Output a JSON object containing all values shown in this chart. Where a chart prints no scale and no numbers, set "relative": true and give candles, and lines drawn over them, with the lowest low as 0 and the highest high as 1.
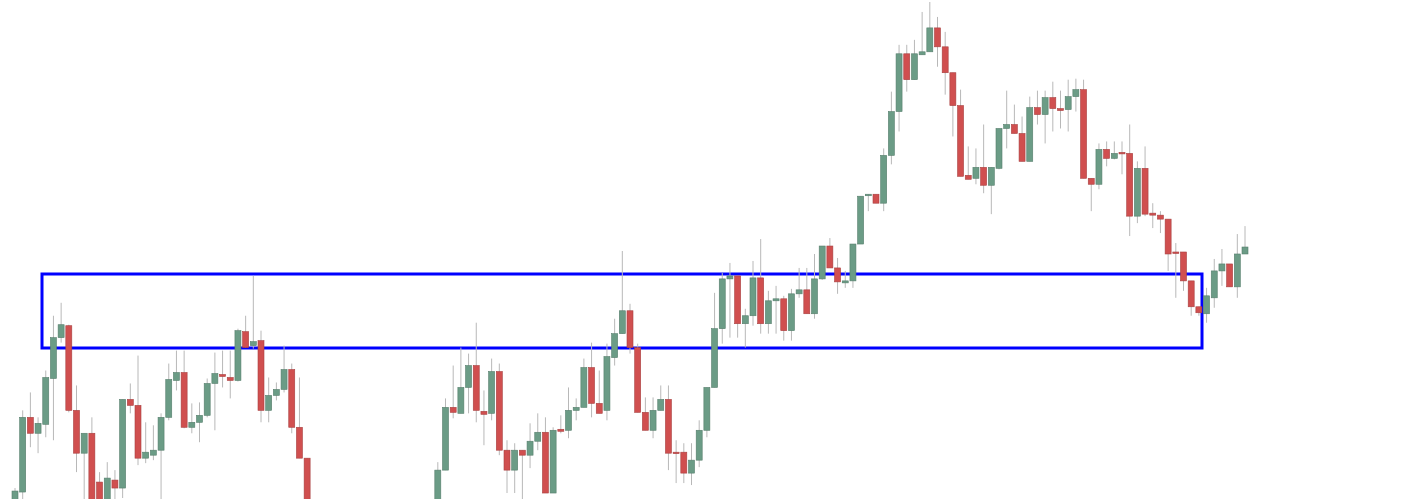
{
  "chart_data": {
    "type": "candlestick",
    "relative": true,
    "categories": [
      null,
      null,
      null,
      null,
      null,
      null,
      null,
      null,
      null,
      null,
      null,
      null,
      null,
      null,
      null,
      null,
      null,
      null,
      null,
      null,
      null,
      null,
      null,
      null,
      null,
      null,
      null,
      null,
      null,
      null,
      null,
      null,
      null,
      null,
      null,
      null,
      null,
      null,
      null,
      null,
      null,
      null,
      null,
      null,
      null,
      null,
      null,
      null,
      null,
      null,
      null,
      null,
      null,
      null,
      null,
      null,
      null,
      null,
      null,
      null,
      null,
      null,
      null,
      null,
      null,
      null,
      null,
      null,
      null,
      null,
      null,
      null,
      null,
      null,
      null,
      null,
      null,
      null,
      null,
      null,
      null,
      null,
      null,
      null,
      null,
      null,
      null,
      null,
      null,
      null,
      null,
      null,
      null,
      null,
      null,
      null,
      null,
      null,
      null,
      null,
      null,
      null,
      null,
      null,
      null,
      null,
      null,
      null,
      null,
      null,
      null,
      null,
      null,
      null,
      null,
      null,
      null,
      null,
      null,
      null,
      null,
      null,
      null,
      null,
      null,
      null,
      null,
      null,
      null,
      null,
      null,
      null,
      null,
      null,
      null,
      null,
      null,
      null,
      null,
      null,
      null,
      null,
      null,
      null,
      null,
      null,
      null,
      null,
      null,
      null,
      null,
      null,
      null,
      null,
      null,
      null,
      null,
      null,
      null,
      null,
      null
    ],
    "ohlc": [
      [
        0,
        0.024,
        0,
        0.018
      ],
      [
        0.016,
        0.18,
        0,
        0.166
      ],
      [
        0.166,
        0.216,
        0.106,
        0.134
      ],
      [
        0.134,
        0.166,
        0.094,
        0.154
      ],
      [
        0.152,
        0.26,
        0.126,
        0.246
      ],
      [
        0.244,
        0.37,
        0.12,
        0.326
      ],
      [
        0.326,
        0.396,
        0.316,
        0.352
      ],
      [
        0.35,
        0.352,
        0.176,
        0.18
      ],
      [
        0.18,
        0.23,
        0.056,
        0.094
      ],
      [
        0.094,
        0.134,
        0,
        0.134
      ],
      [
        0.134,
        0.166,
        0,
        0
      ],
      [
        0.036,
        0.056,
        0,
        0
      ],
      [
        0,
        0.076,
        0,
        0.044
      ],
      [
        0.04,
        0.06,
        0,
        0.024
      ],
      [
        0.024,
        0.202,
        0.004,
        0.202
      ],
      [
        0.202,
        0.234,
        0.174,
        0.19
      ],
      [
        0.19,
        0.29,
        0.07,
        0.084
      ],
      [
        0.084,
        0.156,
        0.074,
        0.096
      ],
      [
        0.09,
        0.15,
        0.08,
        0.1
      ],
      [
        0.1,
        0.174,
        0,
        0.166
      ],
      [
        0.166,
        0.274,
        0.16,
        0.242
      ],
      [
        0.24,
        0.3,
        0.22,
        0.256
      ],
      [
        0.256,
        0.3,
        0.144,
        0.146
      ],
      [
        0.146,
        0.194,
        0.134,
        0.156
      ],
      [
        0.156,
        0.196,
        0.116,
        0.17
      ],
      [
        0.17,
        0.244,
        0.166,
        0.234
      ],
      [
        0.234,
        0.296,
        0.14,
        0.254
      ],
      [
        0.252,
        0.3,
        0.226,
        0.248
      ],
      [
        0.246,
        0.3,
        0.204,
        0.24
      ],
      [
        0.24,
        0.344,
        0.238,
        0.34
      ],
      [
        0.338,
        0.37,
        0.306,
        0.306
      ],
      [
        0.31,
        0.45,
        0.304,
        0.318
      ],
      [
        0.32,
        0.34,
        0.156,
        0.18
      ],
      [
        0.18,
        0.246,
        0.156,
        0.21
      ],
      [
        0.21,
        0.236,
        0.2,
        0.222
      ],
      [
        0.222,
        0.31,
        0.216,
        0.262
      ],
      [
        0.262,
        0.274,
        0.134,
        0.146
      ],
      [
        0.146,
        0.246,
        0.084,
        0.084
      ],
      [
        0.084,
        0.084,
        0,
        0
      ],
      null,
      null,
      null,
      null,
      null,
      null,
      null,
      null,
      null,
      null,
      null,
      null,
      null,
      null,
      null,
      null,
      [
        0,
        0.076,
        0,
        0.06
      ],
      [
        0.06,
        0.204,
        0.06,
        0.186
      ],
      [
        0.186,
        0.27,
        0.164,
        0.176
      ],
      [
        0.174,
        0.306,
        0.174,
        0.226
      ],
      [
        0.226,
        0.294,
        0.174,
        0.27
      ],
      [
        0.27,
        0.356,
        0.156,
        0.18
      ],
      [
        0.178,
        0.22,
        0.11,
        0.172
      ],
      [
        0.174,
        0.284,
        0.16,
        0.258
      ],
      [
        0.258,
        0.274,
        0.09,
        0.1
      ],
      [
        0.1,
        0.12,
        0.014,
        0.06
      ],
      [
        0.06,
        0.114,
        0.014,
        0.1
      ],
      [
        0.1,
        0.1,
        0,
        0.09
      ],
      [
        0.09,
        0.154,
        0.064,
        0.118
      ],
      [
        0.118,
        0.174,
        0.1,
        0.136
      ],
      [
        0.136,
        0.166,
        0.014,
        0.014
      ],
      [
        0.014,
        0.146,
        0.014,
        0.14
      ],
      [
        0.142,
        0.17,
        0.134,
        0.138
      ],
      [
        0.14,
        0.226,
        0.124,
        0.18
      ],
      [
        0.18,
        0.204,
        0.16,
        0.186
      ],
      [
        0.186,
        0.284,
        0.186,
        0.266
      ],
      [
        0.266,
        0.316,
        0.166,
        0.194
      ],
      [
        0.194,
        0.26,
        0.174,
        0.174
      ],
      [
        0.18,
        0.314,
        0.16,
        0.288
      ],
      [
        0.286,
        0.364,
        0.27,
        0.334
      ],
      [
        0.334,
        0.5,
        0.334,
        0.38
      ],
      [
        0.38,
        0.394,
        0.294,
        0.306
      ],
      [
        0.306,
        0.314,
        0.176,
        0.176
      ],
      [
        0.176,
        0.206,
        0.14,
        0.14
      ],
      [
        0.14,
        0.206,
        0.124,
        0.18
      ],
      [
        0.18,
        0.23,
        0.18,
        0.202
      ],
      [
        0.202,
        0.23,
        0.06,
        0.094
      ],
      [
        0.096,
        0.12,
        0.034,
        0.094
      ],
      [
        0.096,
        0.114,
        0.034,
        0.054
      ],
      [
        0.054,
        0.114,
        0.03,
        0.08
      ],
      [
        0.08,
        0.16,
        0.066,
        0.14
      ],
      [
        0.14,
        0.226,
        0.126,
        0.226
      ],
      [
        0.226,
        0.416,
        0.226,
        0.344
      ],
      [
        0.344,
        0.456,
        0.314,
        0.444
      ],
      [
        0.444,
        0.476,
        0.326,
        0.45
      ],
      [
        0.45,
        0.45,
        0.326,
        0.354
      ],
      [
        0.354,
        0.384,
        0.306,
        0.37
      ],
      [
        0.37,
        0.48,
        0.35,
        0.446
      ],
      [
        0.446,
        0.524,
        0.334,
        0.354
      ],
      [
        0.354,
        0.42,
        0.334,
        0.4
      ],
      [
        0.4,
        0.43,
        0.334,
        0.404
      ],
      [
        0.404,
        0.41,
        0.32,
        0.34
      ],
      [
        0.34,
        0.424,
        0.32,
        0.414
      ],
      [
        0.414,
        0.466,
        0.406,
        0.422
      ],
      [
        0.422,
        0.466,
        0.374,
        0.374
      ],
      [
        0.374,
        0.494,
        0.364,
        0.444
      ],
      [
        0.444,
        0.51,
        0.442,
        0.51
      ],
      [
        0.51,
        0.526,
        0.466,
        0.466
      ],
      [
        0.466,
        0.486,
        0.414,
        0.438
      ],
      [
        0.436,
        0.46,
        0.426,
        0.44
      ],
      [
        0.44,
        0.514,
        0.426,
        0.514
      ],
      [
        0.514,
        0.61,
        0.514,
        0.61
      ],
      [
        0.612,
        0.614,
        0.58,
        0.614
      ],
      [
        0.614,
        0.614,
        0.596,
        0.596
      ],
      [
        0.596,
        0.706,
        0.58,
        0.692
      ],
      [
        0.692,
        0.82,
        0.674,
        0.78
      ],
      [
        0.78,
        0.914,
        0.74,
        0.896
      ],
      [
        0.896,
        0.914,
        0.82,
        0.844
      ],
      [
        0.844,
        0.924,
        0.844,
        0.896
      ],
      [
        0.894,
        0.98,
        0.894,
        0.9
      ],
      [
        0.9,
        1,
        0.9,
        0.948
      ],
      [
        0.948,
        0.97,
        0.87,
        0.91
      ],
      [
        0.91,
        0.94,
        0.814,
        0.858
      ],
      [
        0.858,
        0.858,
        0.73,
        0.792
      ],
      [
        0.792,
        0.824,
        0.65,
        0.65
      ],
      [
        0.652,
        0.71,
        0.644,
        0.644
      ],
      [
        0.646,
        0.706,
        0.634,
        0.668
      ],
      [
        0.668,
        0.754,
        0.616,
        0.632
      ],
      [
        0.632,
        0.668,
        0.574,
        0.668
      ],
      [
        0.666,
        0.746,
        0.664,
        0.746
      ],
      [
        0.746,
        0.822,
        0.706,
        0.754
      ],
      [
        0.754,
        0.794,
        0.736,
        0.736
      ],
      [
        0.736,
        0.77,
        0.68,
        0.68
      ],
      [
        0.68,
        0.81,
        0.68,
        0.788
      ],
      [
        0.788,
        0.822,
        0.754,
        0.774
      ],
      [
        0.774,
        0.822,
        0.716,
        0.808
      ],
      [
        0.808,
        0.84,
        0.74,
        0.786
      ],
      [
        0.786,
        0.822,
        0.746,
        0.782
      ],
      [
        0.784,
        0.844,
        0.74,
        0.81
      ],
      [
        0.81,
        0.846,
        0.78,
        0.824
      ],
      [
        0.824,
        0.844,
        0.646,
        0.646
      ],
      [
        0.646,
        0.646,
        0.58,
        0.634
      ],
      [
        0.634,
        0.716,
        0.624,
        0.704
      ],
      [
        0.704,
        0.72,
        0.67,
        0.686
      ],
      [
        0.686,
        0.72,
        0.684,
        0.696
      ],
      [
        0.698,
        0.72,
        0.654,
        0.696
      ],
      [
        0.696,
        0.754,
        0.53,
        0.57
      ],
      [
        0.57,
        0.68,
        0.556,
        0.666
      ],
      [
        0.666,
        0.71,
        0.57,
        0.574
      ],
      [
        0.576,
        0.596,
        0.546,
        0.572
      ],
      [
        0.572,
        0.58,
        0.536,
        0.564
      ],
      [
        0.564,
        0.564,
        0.46,
        0.494
      ],
      [
        0.498,
        0.516,
        0.406,
        0.496
      ],
      [
        0.498,
        0.498,
        0.42,
        0.44
      ],
      [
        0.44,
        0.44,
        0.37,
        0.388
      ],
      [
        0.388,
        0.388,
        0.37,
        0.376
      ],
      [
        0.374,
        0.426,
        0.356,
        0.41
      ],
      [
        0.406,
        0.484,
        0.386,
        0.46
      ],
      [
        0.46,
        0.504,
        0.43,
        0.474
      ],
      [
        0.474,
        0.474,
        0.428,
        0.428
      ],
      [
        0.428,
        0.534,
        0.406,
        0.494
      ],
      [
        0.494,
        0.55,
        0.494,
        0.508
      ]
    ]
  }
}
